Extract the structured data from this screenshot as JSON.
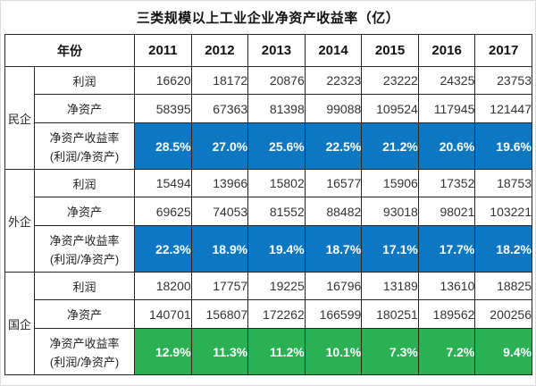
{
  "title": "三类规模以上工业企业净资产收益率（亿）",
  "colors": {
    "roe_private_bg": "#0d78c1",
    "roe_foreign_bg": "#0d78c1",
    "roe_state_bg": "#2bb153",
    "roe_text": "#ffffff",
    "border": "#262626"
  },
  "chart_data": {
    "type": "table",
    "title": "三类规模以上工业企业净资产收益率（亿）",
    "header": {
      "year_label": "年份",
      "years": [
        "2011",
        "2012",
        "2013",
        "2014",
        "2015",
        "2016",
        "2017"
      ]
    },
    "groups": [
      {
        "name": "民企",
        "rows": [
          {
            "label": "利润",
            "values": [
              16620,
              18172,
              20876,
              22323,
              23222,
              24325,
              23753
            ]
          },
          {
            "label": "净资产",
            "values": [
              58395,
              67363,
              81398,
              99088,
              109524,
              117945,
              121447
            ]
          },
          {
            "label": "净资产收益率",
            "label2": "(利润/净资产)",
            "highlight": "#0d78c1",
            "values": [
              "28.5%",
              "27.0%",
              "25.6%",
              "22.5%",
              "21.2%",
              "20.6%",
              "19.6%"
            ]
          }
        ]
      },
      {
        "name": "外企",
        "rows": [
          {
            "label": "利润",
            "values": [
              15494,
              13966,
              15802,
              16577,
              15906,
              17352,
              18753
            ]
          },
          {
            "label": "净资产",
            "values": [
              69625,
              74053,
              81552,
              88482,
              93018,
              98021,
              103221
            ]
          },
          {
            "label": "净资产收益率",
            "label2": "(利润/净资产)",
            "highlight": "#0d78c1",
            "values": [
              "22.3%",
              "18.9%",
              "19.4%",
              "18.7%",
              "17.1%",
              "17.7%",
              "18.2%"
            ]
          }
        ]
      },
      {
        "name": "国企",
        "rows": [
          {
            "label": "利润",
            "values": [
              18200,
              17757,
              19225,
              16796,
              13189,
              13610,
              18825
            ]
          },
          {
            "label": "净资产",
            "values": [
              140701,
              156807,
              172262,
              166599,
              180251,
              189562,
              200256
            ]
          },
          {
            "label": "净资产收益率",
            "label2": "(利润/净资产)",
            "highlight": "#2bb153",
            "values": [
              "12.9%",
              "11.3%",
              "11.2%",
              "10.1%",
              "7.3%",
              "7.2%",
              "9.4%"
            ]
          }
        ]
      }
    ]
  }
}
